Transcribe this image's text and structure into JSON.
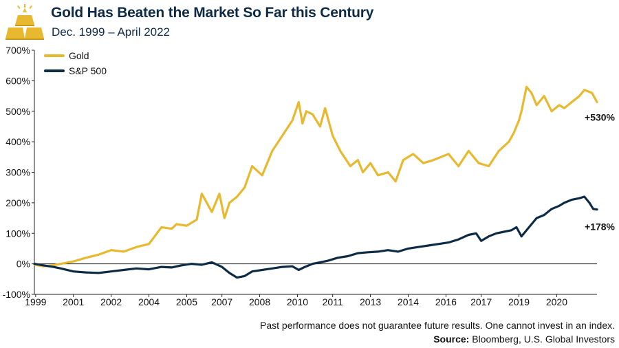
{
  "header": {
    "title": "Gold Has Beaten the Market So Far this Century",
    "subtitle": "Dec. 1999 – April 2022",
    "logo_icon": "gold-bars-icon"
  },
  "footer": {
    "disclaimer": "Past performance does not guarantee future results. One cannot invest in an index.",
    "source_label": "Source:",
    "source_text": "Bloomberg, U.S. Global Investors"
  },
  "colors": {
    "gold": "#e8b92f",
    "sp500": "#0d2b45",
    "text": "#111111"
  },
  "chart_data": {
    "type": "line",
    "title": "Gold Has Beaten the Market So Far this Century",
    "subtitle": "Dec. 1999 – April 2022",
    "xlabel": "",
    "ylabel": "",
    "ylim": [
      -100,
      700
    ],
    "yticks": [
      -100,
      0,
      100,
      200,
      300,
      400,
      500,
      600,
      700
    ],
    "ytick_labels": [
      "-100%",
      "0%",
      "100%",
      "200%",
      "300%",
      "400%",
      "500%",
      "600%",
      "700%"
    ],
    "xlim": [
      1999.95,
      2022.3
    ],
    "xticks": [
      2000.0,
      2001.5,
      2003.0,
      2004.5,
      2006.0,
      2007.4,
      2008.9,
      2010.4,
      2011.8,
      2013.3,
      2014.8,
      2016.3,
      2017.7,
      2019.2,
      2020.7
    ],
    "xtick_labels": [
      "1999",
      "2001",
      "2002",
      "2004",
      "2005",
      "2007",
      "2008",
      "2010",
      "2011",
      "2013",
      "2014",
      "2016",
      "2017",
      "2019",
      "2020"
    ],
    "grid": false,
    "legend": "top-left",
    "series": [
      {
        "name": "Gold",
        "color": "#e8b92f",
        "x": [
          1999.95,
          2000.3,
          2000.7,
          2001.0,
          2001.5,
          2002.0,
          2002.5,
          2003.0,
          2003.5,
          2004.0,
          2004.5,
          2005.0,
          2005.4,
          2005.6,
          2006.0,
          2006.4,
          2006.6,
          2007.0,
          2007.3,
          2007.5,
          2007.7,
          2008.0,
          2008.3,
          2008.6,
          2009.0,
          2009.4,
          2009.8,
          2010.2,
          2010.45,
          2010.6,
          2010.75,
          2011.0,
          2011.3,
          2011.5,
          2011.8,
          2012.1,
          2012.5,
          2012.8,
          2013.0,
          2013.3,
          2013.6,
          2014.0,
          2014.3,
          2014.6,
          2015.0,
          2015.4,
          2015.8,
          2016.1,
          2016.4,
          2016.8,
          2017.2,
          2017.6,
          2018.0,
          2018.4,
          2018.8,
          2019.0,
          2019.2,
          2019.3,
          2019.5,
          2019.7,
          2019.9,
          2020.2,
          2020.5,
          2020.8,
          2021.0,
          2021.3,
          2021.6,
          2021.8,
          2022.1,
          2022.3
        ],
        "values": [
          -2,
          -8,
          -5,
          0,
          8,
          20,
          30,
          45,
          40,
          55,
          65,
          120,
          115,
          130,
          125,
          145,
          230,
          170,
          230,
          150,
          200,
          220,
          250,
          320,
          290,
          370,
          420,
          470,
          530,
          460,
          500,
          490,
          450,
          510,
          420,
          370,
          320,
          340,
          300,
          330,
          290,
          300,
          270,
          340,
          360,
          330,
          340,
          350,
          360,
          320,
          370,
          330,
          320,
          370,
          400,
          430,
          470,
          500,
          580,
          560,
          520,
          550,
          500,
          520,
          510,
          530,
          550,
          570,
          560,
          530
        ]
      },
      {
        "name": "S&P 500",
        "color": "#0d2b45",
        "x": [
          1999.95,
          2000.3,
          2000.7,
          2001.0,
          2001.5,
          2002.0,
          2002.5,
          2003.0,
          2003.5,
          2004.0,
          2004.5,
          2005.0,
          2005.4,
          2005.8,
          2006.2,
          2006.6,
          2007.0,
          2007.4,
          2007.7,
          2008.0,
          2008.3,
          2008.6,
          2009.0,
          2009.4,
          2009.8,
          2010.2,
          2010.45,
          2010.7,
          2011.0,
          2011.3,
          2011.6,
          2012.0,
          2012.4,
          2012.8,
          2013.2,
          2013.6,
          2014.0,
          2014.4,
          2014.8,
          2015.2,
          2015.6,
          2016.0,
          2016.4,
          2016.8,
          2017.2,
          2017.5,
          2017.7,
          2018.0,
          2018.3,
          2018.6,
          2018.9,
          2019.1,
          2019.3,
          2019.6,
          2019.9,
          2020.2,
          2020.5,
          2020.8,
          2021.0,
          2021.3,
          2021.6,
          2021.8,
          2022.0,
          2022.15,
          2022.3
        ],
        "values": [
          0,
          -5,
          -10,
          -15,
          -25,
          -28,
          -30,
          -25,
          -20,
          -15,
          -18,
          -10,
          -12,
          -5,
          0,
          -3,
          5,
          -10,
          -30,
          -45,
          -40,
          -25,
          -20,
          -15,
          -10,
          -8,
          -20,
          -10,
          0,
          5,
          10,
          20,
          25,
          35,
          38,
          40,
          45,
          40,
          50,
          55,
          60,
          65,
          70,
          80,
          95,
          100,
          75,
          90,
          100,
          105,
          110,
          120,
          90,
          120,
          150,
          160,
          180,
          190,
          200,
          210,
          215,
          220,
          200,
          180,
          178
        ]
      }
    ],
    "annotations": [
      {
        "series": "Gold",
        "text": "+530%",
        "x": 2022.3,
        "y": 530
      },
      {
        "series": "S&P 500",
        "text": "+178%",
        "x": 2022.3,
        "y": 178
      }
    ]
  }
}
